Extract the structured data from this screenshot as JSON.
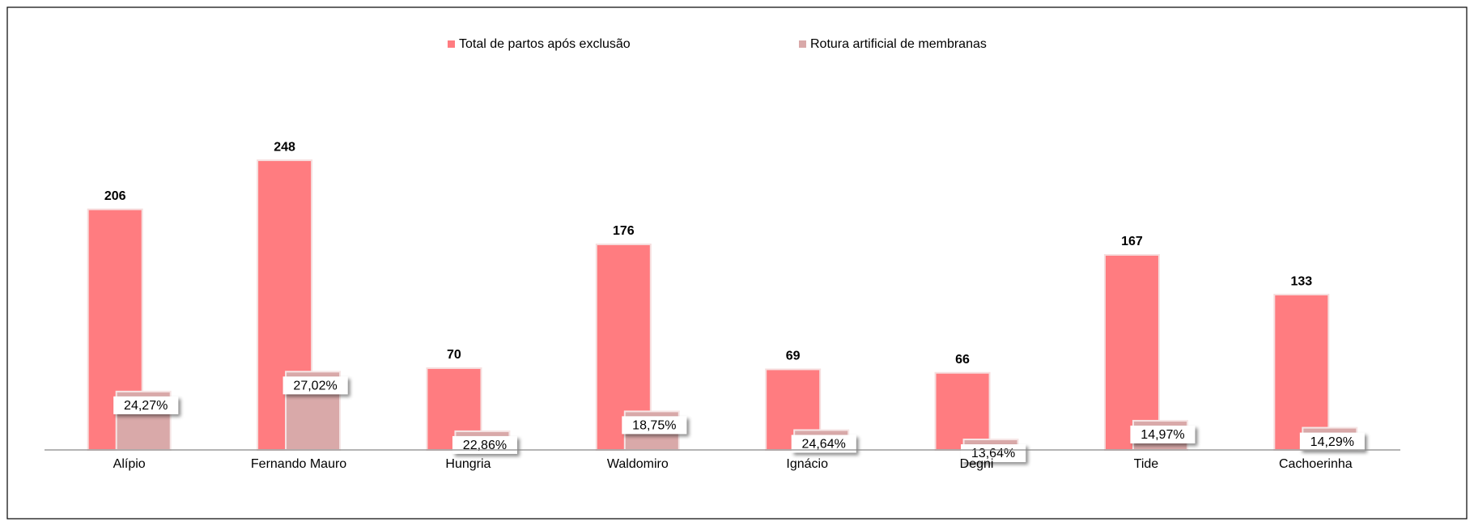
{
  "chart_data": {
    "type": "bar",
    "categories": [
      "Alípio",
      "Fernando Mauro",
      "Hungria",
      "Waldomiro",
      "Ignácio",
      "Degni",
      "Tide",
      "Cachoerinha"
    ],
    "series": [
      {
        "name": "Total de partos após exclusão",
        "color": "#ff7c80",
        "values": [
          206,
          248,
          70,
          176,
          69,
          66,
          167,
          133
        ]
      },
      {
        "name": "Rotura artificial de membranas",
        "color": "#d9a9a9",
        "values": [
          24.27,
          27.02,
          22.86,
          18.75,
          24.64,
          13.64,
          14.97,
          14.29
        ],
        "value_labels": [
          "24,27%",
          "27,02%",
          "22,86%",
          "18,75%",
          "24,64%",
          "13,64%",
          "14,97%",
          "14,29%"
        ]
      }
    ],
    "ylim": [
      0,
      300
    ],
    "legend": "top"
  }
}
